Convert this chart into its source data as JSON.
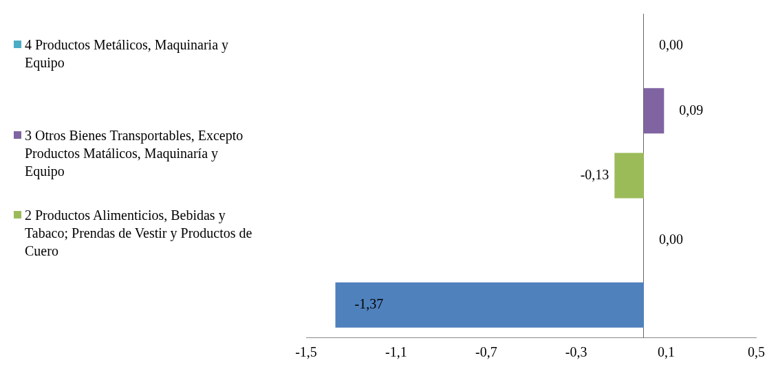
{
  "chart_data": {
    "type": "bar",
    "orientation": "horizontal",
    "categories": [
      null
    ],
    "series": [
      {
        "color": "#4f81bd",
        "values": [
          -1.37
        ]
      },
      {
        "color": "#c0504d",
        "values": [
          0.0
        ]
      },
      {
        "name": "2  Productos Alimenticios, Bebidas y Tabaco; Prendas de  Vestir y Productos de Cuero",
        "color": "#9bbb59",
        "values": [
          -0.13
        ]
      },
      {
        "name": "3  Otros Bienes Transportables, Excepto Productos Matálicos, Maquinaría y Equipo",
        "color": "#8064a2",
        "values": [
          0.09
        ]
      },
      {
        "name": "4  Productos Metálicos, Maquinaria y Equipo",
        "color": "#4bacc6",
        "values": [
          0.0
        ]
      }
    ],
    "xlim": [
      -1.5,
      0.5
    ],
    "xticks": [
      {
        "value": -1.5,
        "label": "-1,5"
      },
      {
        "value": -1.1,
        "label": "-1,1"
      },
      {
        "value": -0.7,
        "label": "-0,7"
      },
      {
        "value": -0.3,
        "label": "-0,3"
      },
      {
        "value": 0.1,
        "label": "0,1"
      },
      {
        "value": 0.5,
        "label": "0,5"
      }
    ],
    "value_labels": [
      "-1,37",
      "0,00",
      "-0,13",
      "0,09",
      "0,00"
    ],
    "grid": false,
    "legend": "left"
  }
}
